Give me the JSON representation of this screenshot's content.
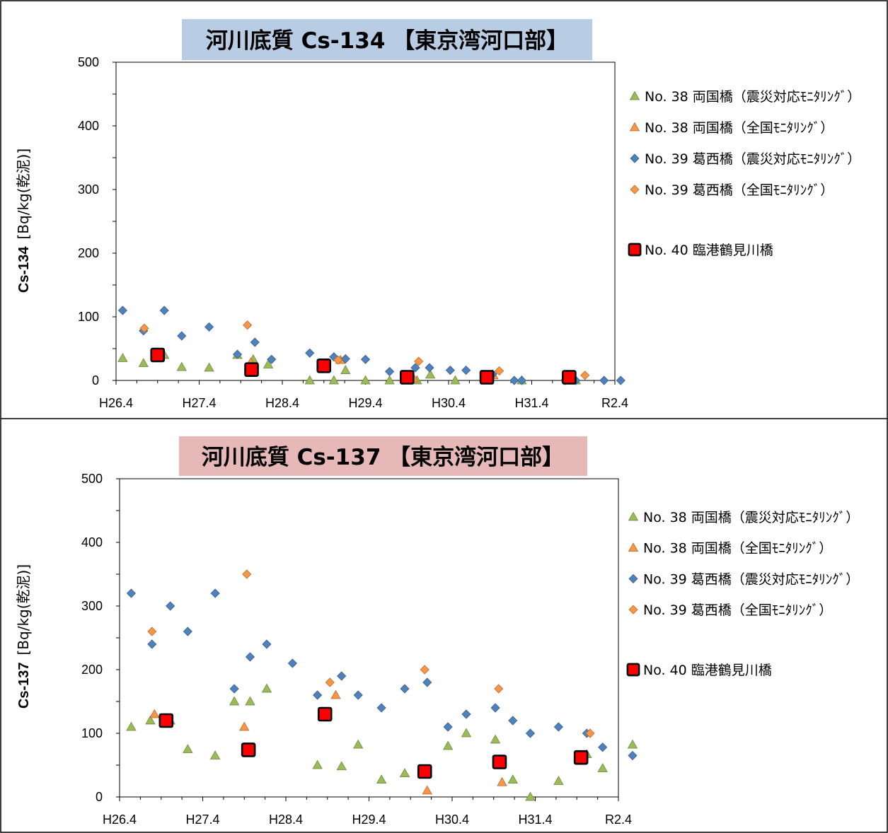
{
  "charts": [
    {
      "title": "河川底質 Cs-134 【東京湾河口部】",
      "title_bg": "#b8cce4",
      "ylabel": "Cs-134",
      "yunit": "[Bq/kg(乾泥)]",
      "ylim": [
        0,
        500
      ],
      "yticks": [
        0,
        100,
        200,
        300,
        400,
        500
      ],
      "xlim": [
        2014.25,
        2020.25
      ],
      "xticks": [
        {
          "v": 2014.25,
          "label": "H26.4"
        },
        {
          "v": 2015.25,
          "label": "H27.4"
        },
        {
          "v": 2016.25,
          "label": "H28.4"
        },
        {
          "v": 2017.25,
          "label": "H29.4"
        },
        {
          "v": 2018.25,
          "label": "H30.4"
        },
        {
          "v": 2019.25,
          "label": "H31.4"
        },
        {
          "v": 2020.25,
          "label": "R2.4"
        }
      ]
    },
    {
      "title": "河川底質 Cs-137 【東京湾河口部】",
      "title_bg": "#e6b9b8",
      "ylabel": "Cs-137",
      "yunit": "[Bq/kg(乾泥)]",
      "ylim": [
        0,
        500
      ],
      "yticks": [
        0,
        100,
        200,
        300,
        400,
        500
      ],
      "xlim": [
        2014.25,
        2020.25
      ],
      "xticks": [
        {
          "v": 2014.25,
          "label": "H26.4"
        },
        {
          "v": 2015.25,
          "label": "H27.4"
        },
        {
          "v": 2016.25,
          "label": "H28.4"
        },
        {
          "v": 2017.25,
          "label": "H29.4"
        },
        {
          "v": 2018.25,
          "label": "H30.4"
        },
        {
          "v": 2019.25,
          "label": "H31.4"
        },
        {
          "v": 2020.25,
          "label": "R2.4"
        }
      ]
    }
  ],
  "legend": [
    {
      "label": "No. 38 両国橋（震災対応ﾓﾆﾀﾘﾝｸﾞ）",
      "marker": "triangle",
      "color": "#9bbb59",
      "stroke": "#71893f"
    },
    {
      "label": "No. 38 両国橋（全国ﾓﾆﾀﾘﾝｸﾞ）",
      "marker": "triangle",
      "color": "#f79646",
      "stroke": "#b66d31"
    },
    {
      "label": "No. 39 葛西橋（震災対応ﾓﾆﾀﾘﾝｸﾞ）",
      "marker": "diamond",
      "color": "#4f81bd",
      "stroke": "#385d8a"
    },
    {
      "label": "No. 39 葛西橋（全国ﾓﾆﾀﾘﾝｸﾞ）",
      "marker": "diamond",
      "color": "#f79646",
      "stroke": "#b66d31"
    },
    {
      "label": "No. 40 臨港鶴見川橋",
      "marker": "square",
      "color": "#ff0000",
      "stroke": "#000000"
    }
  ],
  "chart_data": [
    {
      "type": "scatter",
      "title": "河川底質 Cs-134 【東京湾河口部】",
      "ylabel": "Cs-134 [Bq/kg(乾泥)]",
      "xlim": [
        "H26.4",
        "R2.4"
      ],
      "ylim": [
        0,
        500
      ],
      "grid": false,
      "legend": "right",
      "series": [
        {
          "name": "No. 38 両国橋（震災対応ﾓﾆﾀﾘﾝｸﾞ）",
          "x": [
            2014.33,
            2014.58,
            2014.83,
            2015.04,
            2015.37,
            2015.71,
            2015.9,
            2016.08,
            2016.58,
            2016.87,
            2017.01,
            2017.25,
            2017.54,
            2017.87,
            2018.03,
            2018.33,
            2019.13,
            2019.78
          ],
          "y": [
            35,
            27,
            40,
            21,
            20,
            40,
            33,
            25,
            0,
            0,
            16,
            0,
            0,
            0,
            9,
            0,
            0,
            0
          ]
        },
        {
          "name": "No. 38 両国橋（全国ﾓﾆﾀﾘﾝｸﾞ）",
          "x": [
            2015.87,
            2016.95,
            2017.83,
            2018.79
          ],
          "y": [
            28,
            32,
            3,
            8
          ]
        },
        {
          "name": "No. 39 葛西橋（震災対応ﾓﾆﾀﾘﾝｸﾞ）",
          "x": [
            2014.33,
            2014.58,
            2014.83,
            2015.04,
            2015.37,
            2015.71,
            2015.92,
            2016.12,
            2016.58,
            2016.87,
            2017.01,
            2017.25,
            2017.54,
            2017.85,
            2018.02,
            2018.27,
            2018.46,
            2018.78,
            2019.04,
            2019.13,
            2019.65,
            2019.78,
            2020.12,
            2020.32
          ],
          "y": [
            110,
            78,
            110,
            70,
            84,
            41,
            60,
            33,
            43,
            37,
            34,
            33,
            14,
            20,
            20,
            16,
            16,
            10,
            0,
            0,
            0,
            0,
            0,
            0
          ]
        },
        {
          "name": "No. 39 葛西橋（全国ﾓﾆﾀﾘﾝｸﾞ）",
          "x": [
            2014.59,
            2015.83,
            2016.92,
            2017.89,
            2018.86,
            2019.89
          ],
          "y": [
            82,
            87,
            32,
            30,
            15,
            8
          ]
        },
        {
          "name": "No. 40 臨港鶴見川橋",
          "x": [
            2014.75,
            2015.88,
            2016.75,
            2017.75,
            2018.71,
            2019.7
          ],
          "y": [
            40,
            17,
            23,
            5,
            5,
            5
          ]
        }
      ]
    },
    {
      "type": "scatter",
      "title": "河川底質 Cs-137 【東京湾河口部】",
      "ylabel": "Cs-137 [Bq/kg(乾泥)]",
      "xlim": [
        "H26.4",
        "R2.4"
      ],
      "ylim": [
        0,
        500
      ],
      "grid": false,
      "legend": "right",
      "series": [
        {
          "name": "No. 38 両国橋（震災対応ﾓﾆﾀﾘﾝｸﾞ）",
          "x": [
            2014.39,
            2014.62,
            2014.86,
            2015.07,
            2015.4,
            2015.63,
            2015.82,
            2016.02,
            2016.63,
            2016.92,
            2017.12,
            2017.4,
            2017.68,
            2017.95,
            2018.2,
            2018.42,
            2018.77,
            2018.98,
            2019.19,
            2019.53,
            2019.87,
            2020.06,
            2020.42
          ],
          "y": [
            110,
            120,
            120,
            75,
            65,
            150,
            150,
            170,
            50,
            48,
            82,
            27,
            37,
            38,
            80,
            100,
            90,
            27,
            0,
            25,
            67,
            45,
            82
          ]
        },
        {
          "name": "No. 38 両国橋（全国ﾓﾆﾀﾘﾝｸﾞ）",
          "x": [
            2014.67,
            2015.75,
            2016.85,
            2017.95,
            2018.85
          ],
          "y": [
            130,
            110,
            160,
            10,
            23
          ]
        },
        {
          "name": "No. 39 葛西橋（震災対応ﾓﾆﾀﾘﾝｸﾞ）",
          "x": [
            2014.39,
            2014.64,
            2014.86,
            2015.07,
            2015.4,
            2015.63,
            2015.82,
            2016.02,
            2016.33,
            2016.63,
            2016.92,
            2017.12,
            2017.4,
            2017.68,
            2017.95,
            2018.2,
            2018.42,
            2018.77,
            2018.98,
            2019.19,
            2019.53,
            2019.87,
            2020.06,
            2020.42
          ],
          "y": [
            320,
            240,
            300,
            260,
            320,
            170,
            220,
            240,
            210,
            160,
            190,
            160,
            140,
            170,
            180,
            110,
            130,
            140,
            120,
            100,
            110,
            100,
            78,
            65
          ]
        },
        {
          "name": "No. 39 葛西橋（全国ﾓﾆﾀﾘﾝｸﾞ）",
          "x": [
            2014.64,
            2015.78,
            2016.78,
            2017.92,
            2018.81,
            2019.91
          ],
          "y": [
            260,
            350,
            180,
            200,
            170,
            100
          ]
        },
        {
          "name": "No. 40 臨港鶴見川橋",
          "x": [
            2014.81,
            2015.8,
            2016.72,
            2017.92,
            2018.82,
            2019.8
          ],
          "y": [
            120,
            74,
            130,
            40,
            55,
            62
          ]
        }
      ]
    }
  ]
}
